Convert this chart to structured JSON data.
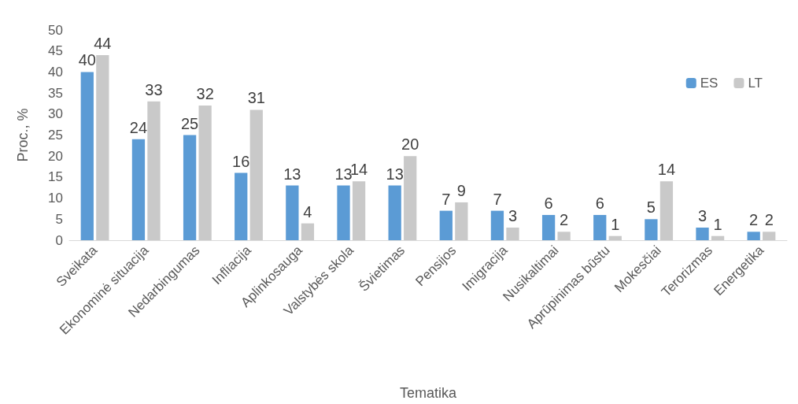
{
  "chart_data": {
    "type": "bar",
    "xlabel": "Tematika",
    "ylabel": "Proc., %",
    "categories": [
      "Sveikata",
      "Ekonominė situacija",
      "Nedarbingumas",
      "Infliacija",
      "Aplinkosauga",
      "Valstybės skola",
      "Švietimas",
      "Pensijos",
      "Imigracija",
      "Nusikaltimai",
      "Aprūpinimas būstu",
      "Mokesčiai",
      "Terorizmas",
      "Energetika"
    ],
    "series": [
      {
        "name": "ES",
        "color": "#5b9bd5",
        "values": [
          40,
          24,
          25,
          16,
          13,
          13,
          13,
          7,
          7,
          6,
          6,
          5,
          3,
          2
        ]
      },
      {
        "name": "LT",
        "color": "#c9c9c9",
        "values": [
          44,
          33,
          32,
          31,
          4,
          14,
          20,
          9,
          3,
          2,
          1,
          14,
          1,
          2
        ]
      }
    ],
    "ylim": [
      0,
      50
    ],
    "yticks": [
      0,
      5,
      10,
      15,
      20,
      25,
      30,
      35,
      40,
      45,
      50
    ],
    "data_labels": true,
    "grid": false,
    "legend": "top right"
  }
}
